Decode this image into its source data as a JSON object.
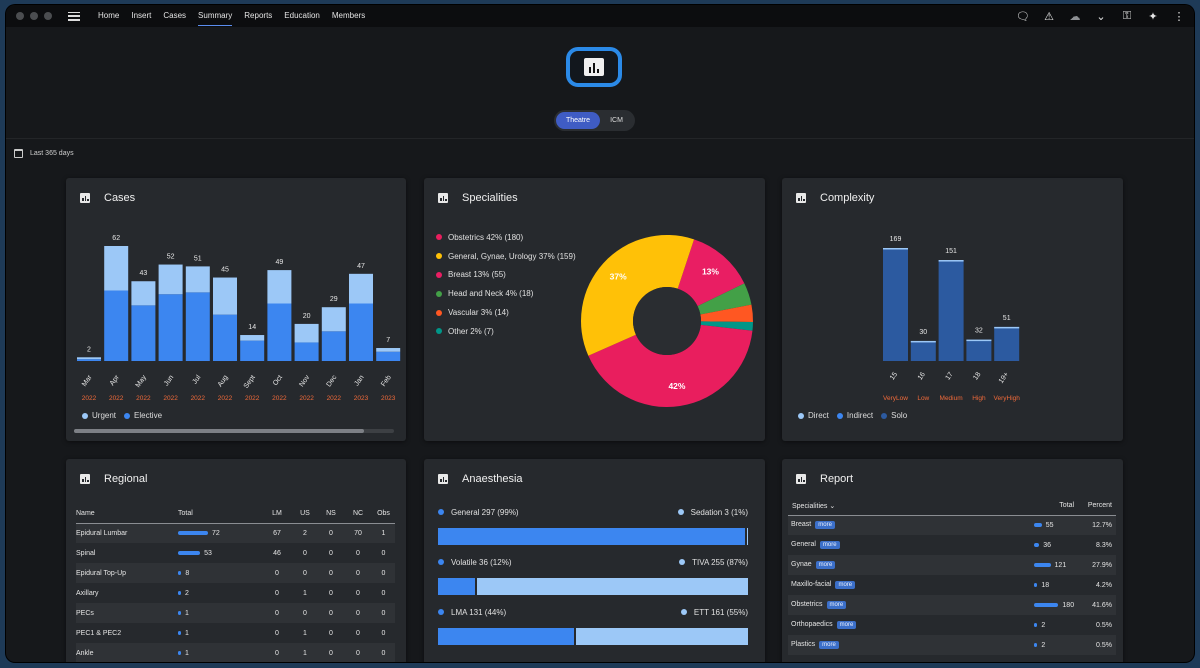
{
  "nav": {
    "items": [
      "Home",
      "Insert",
      "Cases",
      "Summary",
      "Reports",
      "Education",
      "Members"
    ],
    "active": "Summary"
  },
  "toggle": {
    "options": [
      "Theatre",
      "ICM"
    ],
    "selected": "Theatre"
  },
  "date_range": "Last 365 days",
  "cases": {
    "title": "Cases",
    "legend": [
      "Urgent",
      "Elective"
    ],
    "colors": {
      "urgent": "#9cc8f7",
      "elective": "#3c86f0"
    }
  },
  "specialities": {
    "title": "Specialities",
    "items": [
      {
        "label": "Obstetrics 42% (180)",
        "color": "#e91e5e",
        "value": 180
      },
      {
        "label": "General, Gynae, Urology 37% (159)",
        "color": "#ffc107",
        "value": 159
      },
      {
        "label": "Breast 13% (55)",
        "color": "#e91e63",
        "value": 55
      },
      {
        "label": "Head and Neck 4% (18)",
        "color": "#43a047",
        "value": 18
      },
      {
        "label": "Vascular 3% (14)",
        "color": "#ff5722",
        "value": 14
      },
      {
        "label": "Other 2% (7)",
        "color": "#009688",
        "value": 7
      }
    ],
    "slice_labels": [
      "42%",
      "37%",
      "13%"
    ]
  },
  "complexity": {
    "title": "Complexity",
    "legend": [
      "Direct",
      "Indirect",
      "Solo"
    ]
  },
  "regional": {
    "title": "Regional",
    "columns": [
      "Name",
      "Total",
      "LM",
      "US",
      "NS",
      "NC",
      "Obs"
    ],
    "rows": [
      [
        "Epidural Lumbar",
        "72",
        "67",
        "2",
        "0",
        "70",
        "1"
      ],
      [
        "Spinal",
        "53",
        "46",
        "0",
        "0",
        "0",
        "0"
      ],
      [
        "Epidural Top-Up",
        "8",
        "0",
        "0",
        "0",
        "0",
        "0"
      ],
      [
        "Axillary",
        "2",
        "0",
        "1",
        "0",
        "0",
        "0"
      ],
      [
        "PECs",
        "1",
        "0",
        "0",
        "0",
        "0",
        "0"
      ],
      [
        "PEC1 & PEC2",
        "1",
        "0",
        "1",
        "0",
        "0",
        "0"
      ],
      [
        "Ankle",
        "1",
        "0",
        "1",
        "0",
        "0",
        "0"
      ]
    ]
  },
  "anaesthesia": {
    "title": "Anaesthesia",
    "rows": [
      {
        "left": "General 297 (99%)",
        "right": "Sedation 3 (1%)",
        "frac": 0.99
      },
      {
        "left": "Volatile 36 (12%)",
        "right": "TIVA 255 (87%)",
        "frac": 0.12
      },
      {
        "left": "LMA 131 (44%)",
        "right": "ETT 161 (55%)",
        "frac": 0.44
      }
    ]
  },
  "report": {
    "title": "Report",
    "columns": [
      "Specialities",
      "Total",
      "Percent"
    ],
    "more_label": "more",
    "rows": [
      [
        "Breast",
        "55",
        "12.7%"
      ],
      [
        "General",
        "36",
        "8.3%"
      ],
      [
        "Gynae",
        "121",
        "27.9%"
      ],
      [
        "Maxillo-facial",
        "18",
        "4.2%"
      ],
      [
        "Obstetrics",
        "180",
        "41.6%"
      ],
      [
        "Orthopaedics",
        "2",
        "0.5%"
      ],
      [
        "Plastics",
        "2",
        "0.5%"
      ]
    ]
  },
  "chart_data": [
    {
      "type": "bar",
      "title": "Cases",
      "categories": [
        "Mar",
        "Apr",
        "May",
        "Jun",
        "Jul",
        "Aug",
        "Sept",
        "Oct",
        "Nov",
        "Dec",
        "Jan",
        "Feb"
      ],
      "years": [
        "2022",
        "2022",
        "2022",
        "2022",
        "2022",
        "2022",
        "2022",
        "2022",
        "2022",
        "2022",
        "2023",
        "2023"
      ],
      "totals": [
        2,
        62,
        43,
        52,
        51,
        45,
        14,
        49,
        20,
        29,
        47,
        7
      ],
      "series": [
        {
          "name": "Urgent",
          "values": [
            1,
            24,
            13,
            16,
            14,
            20,
            3,
            18,
            10,
            13,
            16,
            2
          ]
        },
        {
          "name": "Elective",
          "values": [
            1,
            38,
            30,
            36,
            37,
            25,
            11,
            31,
            10,
            16,
            31,
            5
          ]
        }
      ],
      "ylim": [
        0,
        65
      ]
    },
    {
      "type": "pie",
      "title": "Specialities",
      "categories": [
        "Obstetrics",
        "General, Gynae, Urology",
        "Breast",
        "Head and Neck",
        "Vascular",
        "Other"
      ],
      "values": [
        180,
        159,
        55,
        18,
        14,
        7
      ]
    },
    {
      "type": "bar",
      "title": "Complexity",
      "categories": [
        "15",
        "16",
        "17",
        "18",
        "19+"
      ],
      "sublabels": [
        "VeryLow",
        "Low",
        "Medium",
        "High",
        "VeryHigh"
      ],
      "values": [
        169,
        30,
        151,
        32,
        51
      ],
      "ylim": [
        0,
        175
      ]
    }
  ]
}
